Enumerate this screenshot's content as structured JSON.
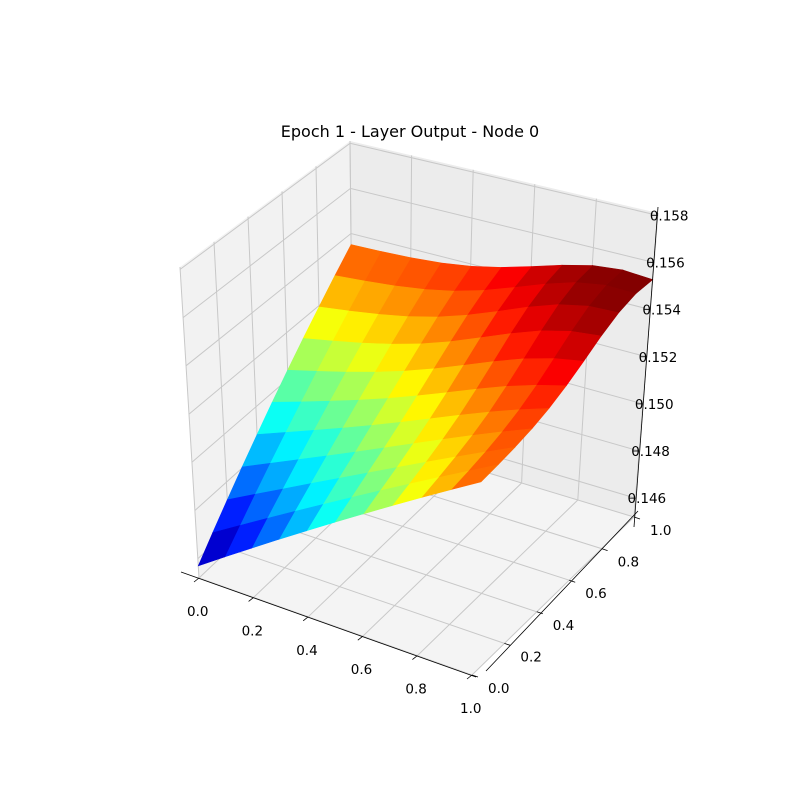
{
  "chart_data": {
    "type": "surface3d",
    "title": "Epoch 1 - Layer Output - Node 0",
    "xlabel": "",
    "ylabel": "",
    "zlabel": "",
    "xlim": [
      0.0,
      1.0
    ],
    "ylim": [
      0.0,
      1.0
    ],
    "zlim": [
      0.1452,
      0.1581
    ],
    "x_ticks": [
      "0.0",
      "0.2",
      "0.4",
      "0.6",
      "0.8",
      "1.0"
    ],
    "y_ticks": [
      "0.0",
      "0.2",
      "0.4",
      "0.6",
      "0.8",
      "1.0"
    ],
    "z_ticks": [
      "0.146",
      "0.148",
      "0.150",
      "0.152",
      "0.154",
      "0.156",
      "0.158"
    ],
    "colormap": "jet",
    "grid": true,
    "colors": {
      "pane_left": "#f2f2f2",
      "pane_back": "#ececec",
      "pane_floor": "#f4f4f4",
      "grid": "#c8c8c8",
      "axis_line": "#000000"
    },
    "surface": {
      "x": [
        0.0,
        0.1,
        0.2,
        0.3,
        0.4,
        0.5,
        0.6,
        0.7,
        0.8,
        0.9,
        1.0
      ],
      "y": [
        0.0,
        0.1,
        0.2,
        0.3,
        0.4,
        0.5,
        0.6,
        0.7,
        0.8,
        0.9,
        1.0
      ],
      "z_corner_values": {
        "x0_y0": 0.1457,
        "x1_y0": 0.1535,
        "x0_y1": 0.1535,
        "x1_y1": 0.1537,
        "peak": 0.154
      }
    }
  }
}
